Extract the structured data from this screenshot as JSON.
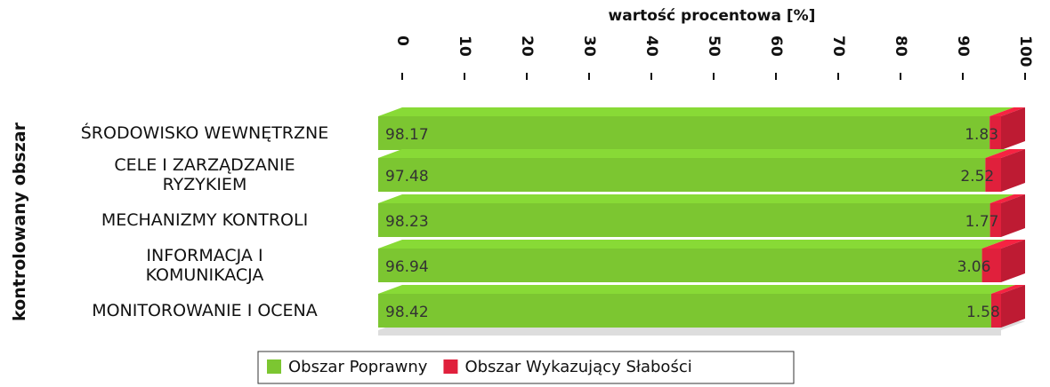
{
  "chart_data": {
    "type": "stacked_bar_horizontal",
    "x_label": "wartość procentowa [%]",
    "y_label": "kontrolowany obszar",
    "categories": [
      "ŚRODOWISKO WEWNĘTRZNE",
      "CELE I ZARZĄDZANIE\nRYZYKIEM",
      "MECHANIZMY KONTROLI",
      "INFORMACJA I\nKOMUNIKACJA",
      "MONITOROWANIE I OCENA"
    ],
    "series": [
      {
        "name": "Obszar Poprawny",
        "color": "#7cc631",
        "values": [
          98.17,
          97.48,
          98.23,
          96.94,
          98.42
        ]
      },
      {
        "name": "Obszar Wykazujący Słabości",
        "color": "#e0203c",
        "values": [
          1.83,
          2.52,
          1.77,
          3.06,
          1.58
        ]
      }
    ],
    "xlim": [
      0,
      100
    ],
    "xticks": [
      0,
      10,
      20,
      30,
      40,
      50,
      60,
      70,
      80,
      90,
      100
    ],
    "legend": "bottom"
  }
}
